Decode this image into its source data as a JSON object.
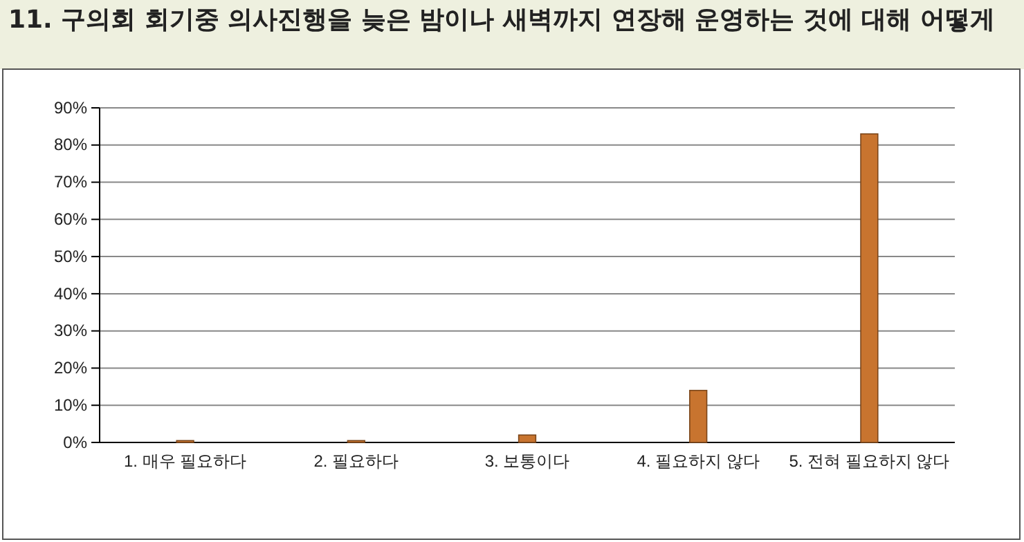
{
  "chart_data": {
    "type": "bar",
    "title": "11. 구의회 회기중 의사진행을 늦은 밤이나 새벽까지 연장해 운영하는 것에 대해 어떻게",
    "categories": [
      "1. 매우 필요하다",
      "2. 필요하다",
      "3. 보통이다",
      "4. 필요하지 않다",
      "5. 전혀 필요하지 않다"
    ],
    "values": [
      0.5,
      0.5,
      2,
      14,
      83
    ],
    "color": "#c8742f",
    "ylim": [
      0,
      90
    ],
    "yticks": [
      {
        "value": 0,
        "label": "0%"
      },
      {
        "value": 10,
        "label": "10%"
      },
      {
        "value": 20,
        "label": "20%"
      },
      {
        "value": 30,
        "label": "30%"
      },
      {
        "value": 40,
        "label": "40%"
      },
      {
        "value": 50,
        "label": "50%"
      },
      {
        "value": 60,
        "label": "60%"
      },
      {
        "value": 70,
        "label": "70%"
      },
      {
        "value": 80,
        "label": "80%"
      },
      {
        "value": 90,
        "label": "90%"
      }
    ],
    "grid": true
  }
}
